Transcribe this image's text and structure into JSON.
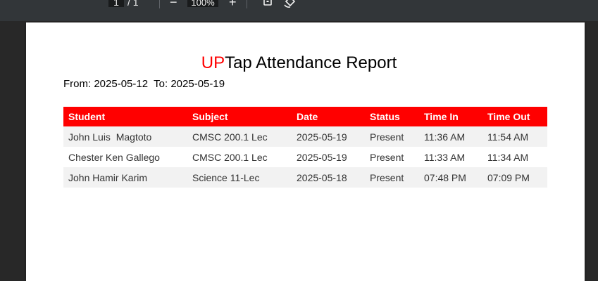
{
  "toolbar": {
    "page_current": "1",
    "page_separator": "/ 1",
    "zoom_out_label": "−",
    "zoom_level": "100%",
    "zoom_in_label": "+",
    "fit_icon": "fit-page-icon",
    "rotate_icon": "rotate-icon"
  },
  "report": {
    "title_accent": "UP",
    "title_rest": "Tap Attendance Report",
    "accent_color": "#ff0000",
    "from_label": "From:",
    "from_date": "2025-05-12",
    "to_label": "To:",
    "to_date": "2025-05-19"
  },
  "table": {
    "headers": [
      "Student",
      "Subject",
      "Date",
      "Status",
      "Time In",
      "Time Out"
    ],
    "rows": [
      [
        "John Luis  Magtoto",
        "CMSC 200.1 Lec",
        "2025-05-19",
        "Present",
        "11:36 AM",
        "11:54 AM"
      ],
      [
        "Chester Ken Gallego",
        "CMSC 200.1 Lec",
        "2025-05-19",
        "Present",
        "11:33 AM",
        "11:34 AM"
      ],
      [
        "John Hamir Karim",
        "Science 11-Lec",
        "2025-05-18",
        "Present",
        "07:48 PM",
        "07:09 PM"
      ]
    ]
  }
}
